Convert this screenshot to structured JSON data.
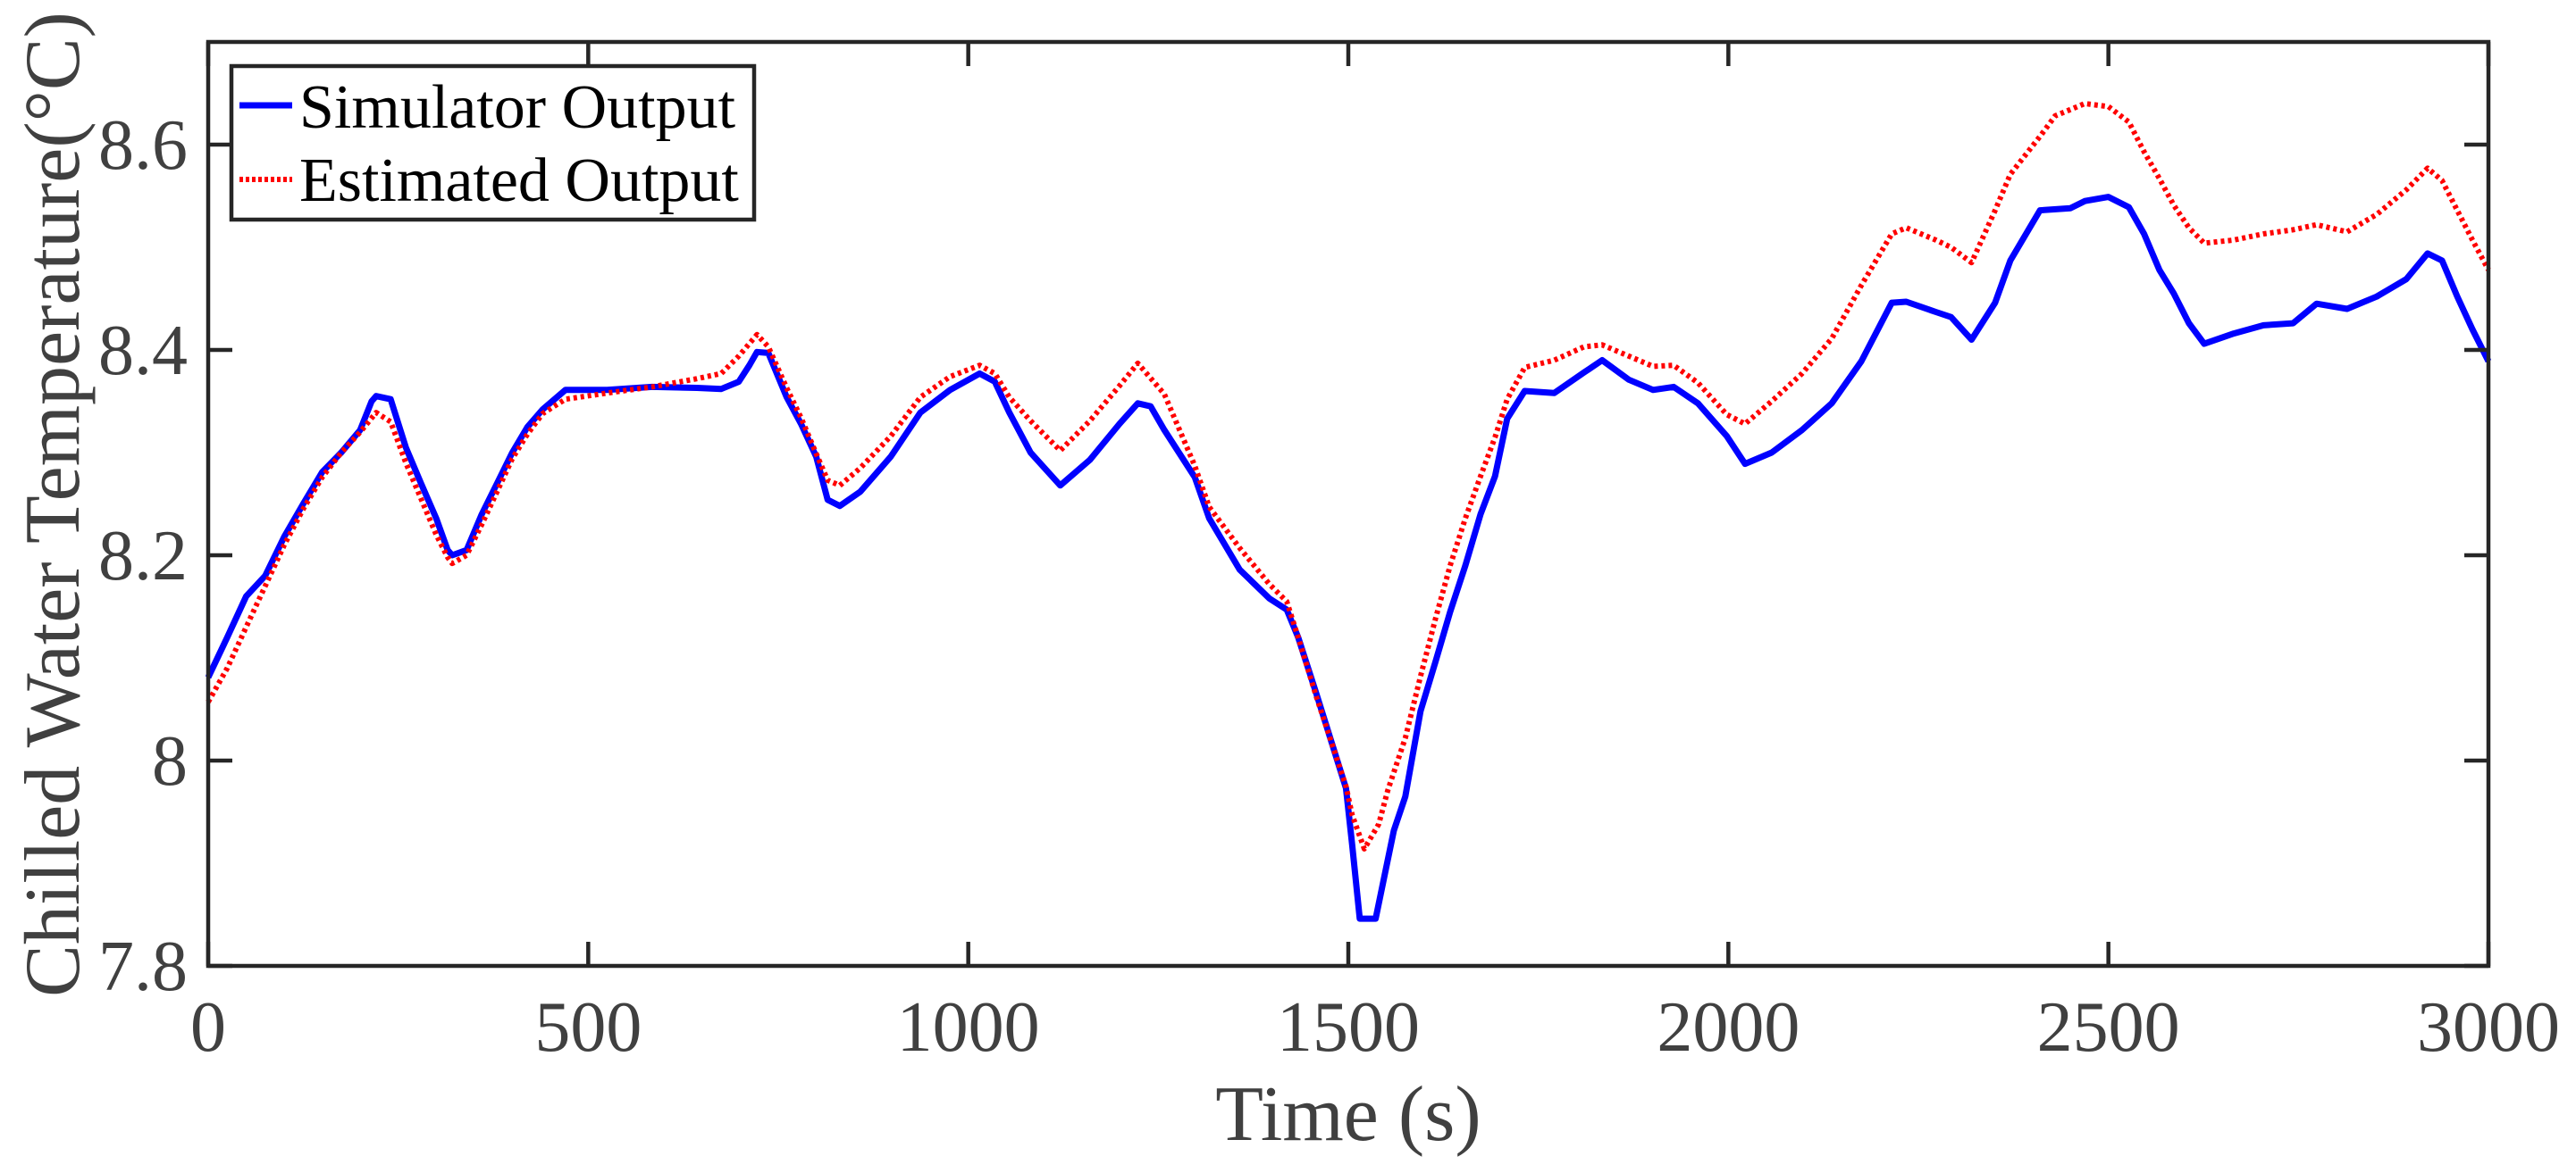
{
  "chart_data": {
    "type": "line",
    "title": "",
    "xlabel": "Time (s)",
    "ylabel": "Chilled Water Temperature(°C)",
    "xlim": [
      0,
      3000
    ],
    "ylim": [
      7.8,
      8.7
    ],
    "xticks": [
      0,
      500,
      1000,
      1500,
      2000,
      2500,
      3000
    ],
    "xtick_labels": [
      "0",
      "500",
      "1000",
      "1500",
      "2000",
      "2500",
      "3000"
    ],
    "yticks": [
      7.8,
      8.0,
      8.2,
      8.4,
      8.6
    ],
    "ytick_labels": [
      "7.8",
      "8",
      "8.2",
      "8.4",
      "8.6"
    ],
    "grid": false,
    "box": true,
    "legend_position": "upper-left",
    "series": [
      {
        "name": "Simulator Output",
        "color": "#0000FF",
        "style": "solid",
        "x": [
          0,
          25,
          50,
          75,
          100,
          125,
          150,
          175,
          200,
          215,
          221,
          240,
          260,
          280,
          300,
          315,
          321,
          340,
          360,
          380,
          400,
          420,
          440,
          470,
          525,
          584,
          643,
          675,
          698,
          712,
          722,
          737,
          761,
          780,
          800,
          815,
          831,
          858,
          898,
          937,
          976,
          1015,
          1035,
          1054,
          1082,
          1121,
          1160,
          1199,
          1223,
          1240,
          1258,
          1298,
          1317,
          1357,
          1396,
          1419,
          1434,
          1458,
          1497,
          1505,
          1515,
          1536,
          1548,
          1560,
          1575,
          1595,
          1615,
          1634,
          1654,
          1674,
          1693,
          1709,
          1732,
          1771,
          1810,
          1834,
          1869,
          1901,
          1928,
          1960,
          1998,
          2022,
          2057,
          2097,
          2136,
          2175,
          2215,
          2234,
          2273,
          2293,
          2320,
          2351,
          2371,
          2410,
          2450,
          2469,
          2500,
          2527,
          2547,
          2567,
          2586,
          2606,
          2626,
          2665,
          2704,
          2743,
          2774,
          2814,
          2853,
          2892,
          2920,
          2939,
          2959,
          2979,
          3000
        ],
        "values": [
          8.081,
          8.12,
          8.16,
          8.18,
          8.218,
          8.25,
          8.281,
          8.3,
          8.322,
          8.35,
          8.355,
          8.352,
          8.305,
          8.27,
          8.236,
          8.205,
          8.2,
          8.205,
          8.24,
          8.27,
          8.3,
          8.325,
          8.342,
          8.361,
          8.361,
          8.364,
          8.363,
          8.362,
          8.369,
          8.385,
          8.398,
          8.397,
          8.354,
          8.328,
          8.296,
          8.254,
          8.248,
          8.262,
          8.296,
          8.339,
          8.361,
          8.377,
          8.369,
          8.339,
          8.3,
          8.268,
          8.293,
          8.328,
          8.348,
          8.345,
          8.322,
          8.276,
          8.236,
          8.186,
          8.158,
          8.147,
          8.12,
          8.065,
          7.973,
          7.918,
          7.846,
          7.846,
          7.889,
          7.932,
          7.965,
          8.048,
          8.097,
          8.145,
          8.19,
          8.24,
          8.277,
          8.333,
          8.36,
          8.358,
          8.378,
          8.39,
          8.371,
          8.361,
          8.364,
          8.348,
          8.316,
          8.289,
          8.3,
          8.322,
          8.348,
          8.389,
          8.446,
          8.447,
          8.437,
          8.432,
          8.41,
          8.446,
          8.487,
          8.536,
          8.538,
          8.545,
          8.549,
          8.539,
          8.513,
          8.478,
          8.455,
          8.426,
          8.406,
          8.416,
          8.424,
          8.426,
          8.445,
          8.44,
          8.452,
          8.469,
          8.494,
          8.487,
          8.452,
          8.42,
          8.389
        ]
      },
      {
        "name": "Estimated Output",
        "color": "#FF0000",
        "style": "dotted",
        "x": [
          0,
          25,
          50,
          75,
          100,
          125,
          150,
          175,
          200,
          221,
          240,
          260,
          280,
          300,
          315,
          321,
          340,
          360,
          380,
          400,
          420,
          440,
          470,
          525,
          584,
          643,
          675,
          698,
          722,
          737,
          761,
          780,
          800,
          815,
          831,
          858,
          898,
          937,
          976,
          1015,
          1035,
          1054,
          1082,
          1121,
          1160,
          1199,
          1223,
          1258,
          1298,
          1317,
          1357,
          1396,
          1419,
          1434,
          1458,
          1497,
          1505,
          1521,
          1540,
          1552,
          1575,
          1595,
          1615,
          1634,
          1654,
          1674,
          1693,
          1709,
          1732,
          1771,
          1810,
          1834,
          1869,
          1901,
          1928,
          1960,
          1998,
          2022,
          2057,
          2097,
          2136,
          2175,
          2215,
          2234,
          2273,
          2293,
          2320,
          2351,
          2371,
          2410,
          2430,
          2469,
          2500,
          2527,
          2547,
          2567,
          2586,
          2606,
          2626,
          2665,
          2704,
          2743,
          2774,
          2814,
          2853,
          2892,
          2920,
          2939,
          2959,
          2979,
          3000
        ],
        "values": [
          8.057,
          8.09,
          8.13,
          8.17,
          8.21,
          8.245,
          8.276,
          8.3,
          8.32,
          8.339,
          8.33,
          8.29,
          8.255,
          8.22,
          8.198,
          8.192,
          8.2,
          8.23,
          8.262,
          8.294,
          8.318,
          8.338,
          8.352,
          8.358,
          8.364,
          8.372,
          8.377,
          8.394,
          8.415,
          8.403,
          8.363,
          8.334,
          8.299,
          8.273,
          8.268,
          8.285,
          8.316,
          8.354,
          8.374,
          8.385,
          8.377,
          8.354,
          8.331,
          8.302,
          8.331,
          8.365,
          8.387,
          8.357,
          8.287,
          8.247,
          8.207,
          8.172,
          8.155,
          8.12,
          8.062,
          7.975,
          7.947,
          7.914,
          7.938,
          7.971,
          8.022,
          8.082,
          8.139,
          8.19,
          8.236,
          8.277,
          8.315,
          8.352,
          8.383,
          8.39,
          8.403,
          8.405,
          8.394,
          8.384,
          8.385,
          8.368,
          8.337,
          8.328,
          8.35,
          8.377,
          8.411,
          8.463,
          8.513,
          8.519,
          8.507,
          8.5,
          8.485,
          8.536,
          8.571,
          8.608,
          8.628,
          8.64,
          8.637,
          8.622,
          8.593,
          8.567,
          8.541,
          8.519,
          8.504,
          8.507,
          8.513,
          8.517,
          8.522,
          8.515,
          8.532,
          8.556,
          8.577,
          8.565,
          8.536,
          8.507,
          8.478
        ]
      }
    ]
  },
  "legend": {
    "items": [
      {
        "label": "Simulator Output",
        "color": "#0000FF",
        "style": "solid"
      },
      {
        "label": "Estimated Output",
        "color": "#FF0000",
        "style": "dotted"
      }
    ]
  },
  "axes": {
    "xlabel": "Time (s)",
    "ylabel": "Chilled Water Temperature(°C)",
    "xtick_labels": [
      "0",
      "500",
      "1000",
      "1500",
      "2000",
      "2500",
      "3000"
    ],
    "ytick_labels": [
      "7.8",
      "8",
      "8.2",
      "8.4",
      "8.6"
    ]
  }
}
